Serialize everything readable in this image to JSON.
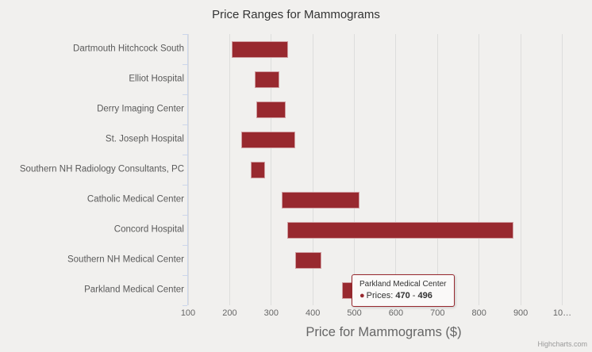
{
  "chart_data": {
    "type": "bar",
    "title": "Price Ranges for Mammograms",
    "xlabel": "Price for Mammograms ($)",
    "ylabel": "",
    "grid": true,
    "legend": false,
    "bar_color": "#98292f",
    "xlim": [
      100,
      1041
    ],
    "ticks": [
      100,
      200,
      300,
      400,
      500,
      600,
      700,
      800,
      900,
      1000
    ],
    "tick_labels": [
      "100",
      "200",
      "300",
      "400",
      "500",
      "600",
      "700",
      "800",
      "900",
      "10…"
    ],
    "categories": [
      "Dartmouth Hitchcock South",
      "Elliot Hospital",
      "Derry Imaging Center",
      "St. Joseph Hospital",
      "Southern NH Radiology Consultants, PC",
      "Catholic Medical Center",
      "Concord Hospital",
      "Southern NH Medical Center",
      "Parkland Medical Center"
    ],
    "series": [
      {
        "name": "Prices",
        "ranges": [
          [
            205,
            341
          ],
          [
            260,
            320
          ],
          [
            265,
            335
          ],
          [
            227,
            358
          ],
          [
            251,
            286
          ],
          [
            326,
            513
          ],
          [
            339,
            882
          ],
          [
            357,
            421
          ],
          [
            470,
            496
          ]
        ]
      }
    ]
  },
  "tooltip": {
    "header": "Parkland Medical Center",
    "marker": "●",
    "label": "Prices: ",
    "low": "470",
    "separator": " - ",
    "high": "496"
  },
  "credits": "Highcharts.com"
}
